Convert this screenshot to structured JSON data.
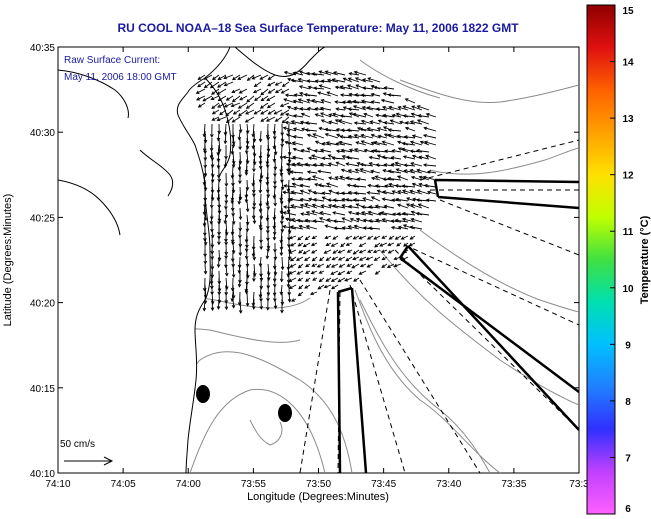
{
  "title": "RU COOL  NOAA–18  Sea Surface Temperature:  May 11, 2006 1822 GMT",
  "annotation": {
    "line1": "Raw Surface Current:",
    "line2": "May 11, 2006 18:00 GMT"
  },
  "scale_label": "50 cm/s",
  "axes": {
    "xlabel": "Longitude (Degrees:Minutes)",
    "ylabel": "Latitude (Degrees:Minutes)",
    "x_ticks": [
      "74:10",
      "74:05",
      "74:00",
      "73:55",
      "73:50",
      "73:45",
      "73:40",
      "73:35",
      "73:3"
    ],
    "y_ticks": [
      "40:35",
      "40:30",
      "40:25",
      "40:20",
      "40:15",
      "40:10"
    ]
  },
  "colorbar": {
    "label": "Temperature (°C)",
    "ticks": [
      "15",
      "14",
      "13",
      "12",
      "11",
      "10",
      "9",
      "8",
      "7",
      "6"
    ],
    "min": 6,
    "max": 15,
    "colors": [
      "#ff60ff",
      "#c040ff",
      "#3030ff",
      "#2080ff",
      "#00c0ff",
      "#00e0b0",
      "#40e040",
      "#c0ff00",
      "#ffe000",
      "#ffa000",
      "#ff6000",
      "#e01010",
      "#900000"
    ]
  },
  "colors": {
    "title_blue": "#1a1aa0",
    "contour_gray": "#8c8c8c",
    "vector_black": "#000000"
  },
  "map_features": [
    "coastline",
    "bathymetry-contours",
    "current-vectors",
    "radial-sector-lines",
    "buoy-markers"
  ]
}
